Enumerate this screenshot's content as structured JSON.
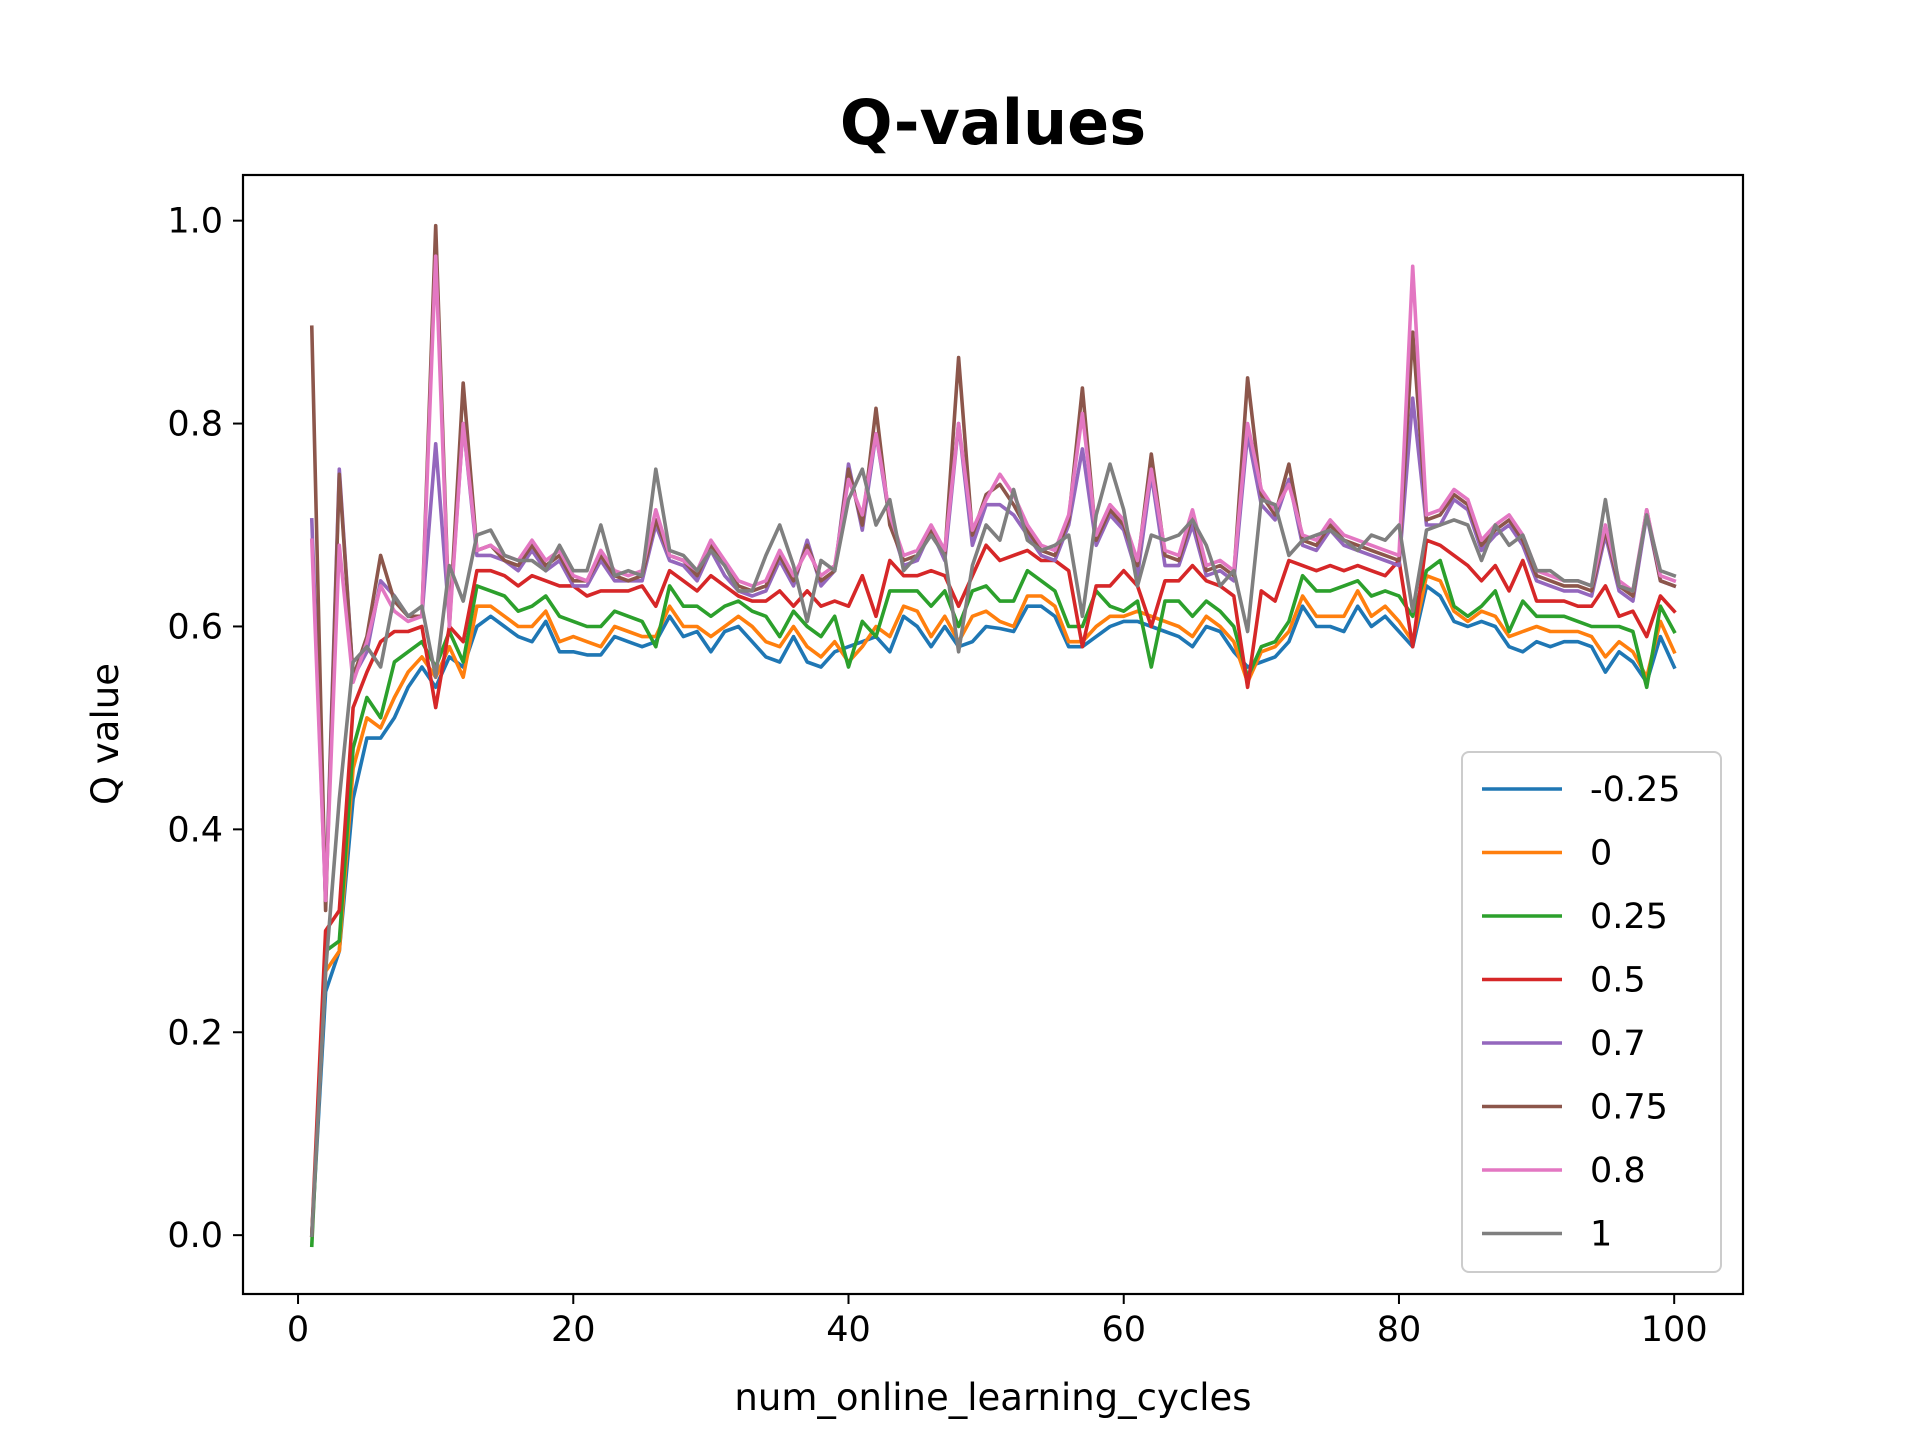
{
  "chart_data": {
    "type": "line",
    "title": "Q-values",
    "xlabel": "num_online_learning_cycles",
    "ylabel": "Q value",
    "xlim": [
      -4,
      105
    ],
    "ylim": [
      -0.058,
      1.045
    ],
    "x_ticks": [
      0,
      20,
      40,
      60,
      80,
      100
    ],
    "y_ticks": [
      0.0,
      0.2,
      0.4,
      0.6,
      0.8,
      1.0
    ],
    "x_tick_labels": [
      "0",
      "20",
      "40",
      "60",
      "80",
      "100"
    ],
    "y_tick_labels": [
      "0.0",
      "0.2",
      "0.4",
      "0.6",
      "0.8",
      "1.0"
    ],
    "grid": false,
    "legend_position": "lower-right",
    "x": [
      1,
      2,
      3,
      4,
      5,
      6,
      7,
      8,
      9,
      10,
      11,
      12,
      13,
      14,
      15,
      16,
      17,
      18,
      19,
      20,
      21,
      22,
      23,
      24,
      25,
      26,
      27,
      28,
      29,
      30,
      31,
      32,
      33,
      34,
      35,
      36,
      37,
      38,
      39,
      40,
      41,
      42,
      43,
      44,
      45,
      46,
      47,
      48,
      49,
      50,
      51,
      52,
      53,
      54,
      55,
      56,
      57,
      58,
      59,
      60,
      61,
      62,
      63,
      64,
      65,
      66,
      67,
      68,
      69,
      70,
      71,
      72,
      73,
      74,
      75,
      76,
      77,
      78,
      79,
      80,
      81,
      82,
      83,
      84,
      85,
      86,
      87,
      88,
      89,
      90,
      91,
      92,
      93,
      94,
      95,
      96,
      97,
      98,
      99,
      100
    ],
    "series": [
      {
        "name": "-0.25",
        "color": "#1f77b4",
        "values": [
          0.0,
          0.24,
          0.28,
          0.43,
          0.49,
          0.49,
          0.51,
          0.54,
          0.56,
          0.54,
          0.57,
          0.56,
          0.6,
          0.61,
          0.6,
          0.59,
          0.585,
          0.605,
          0.575,
          0.575,
          0.572,
          0.572,
          0.59,
          0.585,
          0.58,
          0.585,
          0.61,
          0.59,
          0.595,
          0.575,
          0.595,
          0.6,
          0.585,
          0.57,
          0.565,
          0.59,
          0.565,
          0.56,
          0.575,
          0.58,
          0.585,
          0.59,
          0.575,
          0.61,
          0.6,
          0.58,
          0.6,
          0.58,
          0.585,
          0.6,
          0.598,
          0.595,
          0.62,
          0.62,
          0.61,
          0.58,
          0.58,
          0.59,
          0.6,
          0.605,
          0.605,
          0.6,
          0.595,
          0.59,
          0.58,
          0.6,
          0.595,
          0.575,
          0.56,
          0.565,
          0.57,
          0.585,
          0.62,
          0.6,
          0.6,
          0.595,
          0.62,
          0.6,
          0.61,
          0.595,
          0.58,
          0.64,
          0.63,
          0.605,
          0.6,
          0.605,
          0.6,
          0.58,
          0.575,
          0.585,
          0.58,
          0.585,
          0.585,
          0.58,
          0.555,
          0.575,
          0.565,
          0.545,
          0.59,
          0.56
        ]
      },
      {
        "name": "0",
        "color": "#ff7f0e",
        "values": [
          0.0,
          0.26,
          0.28,
          0.46,
          0.51,
          0.5,
          0.53,
          0.555,
          0.57,
          0.55,
          0.58,
          0.55,
          0.62,
          0.62,
          0.61,
          0.6,
          0.6,
          0.615,
          0.585,
          0.59,
          0.585,
          0.58,
          0.6,
          0.595,
          0.59,
          0.59,
          0.62,
          0.6,
          0.6,
          0.59,
          0.6,
          0.61,
          0.6,
          0.585,
          0.58,
          0.6,
          0.58,
          0.57,
          0.585,
          0.565,
          0.58,
          0.6,
          0.59,
          0.62,
          0.615,
          0.59,
          0.61,
          0.585,
          0.61,
          0.615,
          0.605,
          0.6,
          0.63,
          0.63,
          0.62,
          0.585,
          0.585,
          0.6,
          0.61,
          0.61,
          0.615,
          0.61,
          0.605,
          0.6,
          0.59,
          0.61,
          0.6,
          0.585,
          0.545,
          0.575,
          0.58,
          0.595,
          0.63,
          0.61,
          0.61,
          0.61,
          0.635,
          0.61,
          0.62,
          0.605,
          0.585,
          0.65,
          0.645,
          0.615,
          0.605,
          0.615,
          0.61,
          0.59,
          0.595,
          0.6,
          0.595,
          0.595,
          0.595,
          0.59,
          0.57,
          0.585,
          0.575,
          0.55,
          0.605,
          0.575
        ]
      },
      {
        "name": "0.25",
        "color": "#2ca02c",
        "values": [
          -0.01,
          0.28,
          0.29,
          0.48,
          0.53,
          0.51,
          0.565,
          0.575,
          0.585,
          0.56,
          0.595,
          0.565,
          0.64,
          0.635,
          0.63,
          0.615,
          0.62,
          0.63,
          0.61,
          0.605,
          0.6,
          0.6,
          0.615,
          0.61,
          0.605,
          0.58,
          0.64,
          0.62,
          0.62,
          0.61,
          0.62,
          0.625,
          0.615,
          0.61,
          0.59,
          0.615,
          0.6,
          0.59,
          0.61,
          0.56,
          0.605,
          0.59,
          0.635,
          0.635,
          0.635,
          0.62,
          0.635,
          0.6,
          0.635,
          0.64,
          0.625,
          0.625,
          0.655,
          0.645,
          0.635,
          0.6,
          0.6,
          0.635,
          0.62,
          0.615,
          0.625,
          0.56,
          0.625,
          0.625,
          0.61,
          0.625,
          0.615,
          0.6,
          0.55,
          0.58,
          0.585,
          0.605,
          0.65,
          0.635,
          0.635,
          0.64,
          0.645,
          0.63,
          0.635,
          0.63,
          0.61,
          0.655,
          0.665,
          0.62,
          0.61,
          0.62,
          0.635,
          0.595,
          0.625,
          0.61,
          0.61,
          0.61,
          0.605,
          0.6,
          0.6,
          0.6,
          0.595,
          0.54,
          0.62,
          0.595
        ]
      },
      {
        "name": "0.5",
        "color": "#d62728",
        "values": [
          0.0,
          0.3,
          0.32,
          0.52,
          0.555,
          0.585,
          0.595,
          0.595,
          0.6,
          0.52,
          0.6,
          0.585,
          0.655,
          0.655,
          0.65,
          0.64,
          0.65,
          0.645,
          0.64,
          0.64,
          0.63,
          0.635,
          0.635,
          0.635,
          0.64,
          0.62,
          0.655,
          0.645,
          0.635,
          0.65,
          0.64,
          0.63,
          0.625,
          0.625,
          0.635,
          0.62,
          0.635,
          0.62,
          0.625,
          0.62,
          0.65,
          0.61,
          0.665,
          0.65,
          0.65,
          0.655,
          0.65,
          0.62,
          0.65,
          0.68,
          0.665,
          0.67,
          0.675,
          0.665,
          0.665,
          0.655,
          0.58,
          0.64,
          0.64,
          0.655,
          0.64,
          0.6,
          0.645,
          0.645,
          0.66,
          0.645,
          0.64,
          0.63,
          0.54,
          0.635,
          0.625,
          0.665,
          0.66,
          0.655,
          0.66,
          0.655,
          0.66,
          0.655,
          0.65,
          0.665,
          0.58,
          0.685,
          0.68,
          0.67,
          0.66,
          0.645,
          0.66,
          0.635,
          0.665,
          0.625,
          0.625,
          0.625,
          0.62,
          0.62,
          0.64,
          0.61,
          0.615,
          0.59,
          0.63,
          0.615
        ]
      },
      {
        "name": "0.7",
        "color": "#9467bd",
        "values": [
          0.705,
          0.33,
          0.755,
          0.55,
          0.575,
          0.645,
          0.63,
          0.61,
          0.61,
          0.78,
          0.605,
          0.8,
          0.67,
          0.67,
          0.665,
          0.655,
          0.675,
          0.655,
          0.665,
          0.64,
          0.64,
          0.665,
          0.645,
          0.645,
          0.645,
          0.7,
          0.665,
          0.66,
          0.645,
          0.675,
          0.65,
          0.635,
          0.63,
          0.635,
          0.665,
          0.64,
          0.685,
          0.64,
          0.655,
          0.76,
          0.695,
          0.79,
          0.705,
          0.66,
          0.665,
          0.695,
          0.665,
          0.8,
          0.68,
          0.72,
          0.72,
          0.71,
          0.69,
          0.67,
          0.665,
          0.7,
          0.775,
          0.68,
          0.71,
          0.695,
          0.65,
          0.75,
          0.66,
          0.66,
          0.7,
          0.65,
          0.655,
          0.645,
          0.79,
          0.72,
          0.705,
          0.745,
          0.68,
          0.675,
          0.695,
          0.68,
          0.675,
          0.67,
          0.665,
          0.66,
          0.825,
          0.7,
          0.7,
          0.725,
          0.715,
          0.675,
          0.69,
          0.7,
          0.68,
          0.645,
          0.64,
          0.635,
          0.635,
          0.63,
          0.69,
          0.635,
          0.625,
          0.71,
          0.645,
          0.64
        ]
      },
      {
        "name": "0.75",
        "color": "#8c564b",
        "values": [
          0.895,
          0.32,
          0.75,
          0.55,
          0.59,
          0.67,
          0.625,
          0.61,
          0.61,
          0.995,
          0.6,
          0.84,
          0.675,
          0.68,
          0.665,
          0.66,
          0.68,
          0.66,
          0.67,
          0.645,
          0.645,
          0.67,
          0.65,
          0.645,
          0.65,
          0.705,
          0.67,
          0.665,
          0.65,
          0.68,
          0.66,
          0.64,
          0.635,
          0.64,
          0.67,
          0.645,
          0.68,
          0.645,
          0.655,
          0.755,
          0.7,
          0.815,
          0.7,
          0.665,
          0.67,
          0.695,
          0.67,
          0.865,
          0.69,
          0.73,
          0.74,
          0.72,
          0.695,
          0.675,
          0.67,
          0.705,
          0.835,
          0.685,
          0.715,
          0.7,
          0.66,
          0.77,
          0.67,
          0.665,
          0.71,
          0.655,
          0.66,
          0.65,
          0.845,
          0.73,
          0.71,
          0.76,
          0.685,
          0.68,
          0.7,
          0.685,
          0.68,
          0.675,
          0.67,
          0.665,
          0.89,
          0.705,
          0.71,
          0.73,
          0.72,
          0.68,
          0.695,
          0.705,
          0.685,
          0.65,
          0.645,
          0.64,
          0.64,
          0.635,
          0.695,
          0.64,
          0.63,
          0.715,
          0.645,
          0.64
        ]
      },
      {
        "name": "0.8",
        "color": "#e377c2",
        "values": [
          0.685,
          0.33,
          0.68,
          0.545,
          0.585,
          0.64,
          0.615,
          0.605,
          0.61,
          0.965,
          0.6,
          0.8,
          0.675,
          0.68,
          0.67,
          0.665,
          0.685,
          0.665,
          0.675,
          0.65,
          0.645,
          0.675,
          0.655,
          0.65,
          0.655,
          0.715,
          0.67,
          0.665,
          0.655,
          0.685,
          0.665,
          0.645,
          0.64,
          0.645,
          0.675,
          0.65,
          0.675,
          0.65,
          0.66,
          0.745,
          0.71,
          0.79,
          0.71,
          0.67,
          0.675,
          0.7,
          0.675,
          0.8,
          0.695,
          0.725,
          0.75,
          0.73,
          0.7,
          0.68,
          0.675,
          0.71,
          0.81,
          0.69,
          0.72,
          0.705,
          0.665,
          0.755,
          0.675,
          0.67,
          0.715,
          0.66,
          0.665,
          0.655,
          0.8,
          0.735,
          0.715,
          0.74,
          0.69,
          0.685,
          0.705,
          0.69,
          0.685,
          0.68,
          0.675,
          0.67,
          0.955,
          0.71,
          0.715,
          0.735,
          0.725,
          0.685,
          0.7,
          0.71,
          0.69,
          0.655,
          0.65,
          0.645,
          0.645,
          0.64,
          0.7,
          0.645,
          0.635,
          0.715,
          0.65,
          0.645
        ]
      },
      {
        "name": "1",
        "color": "#7f7f7f",
        "values": [
          0.0,
          0.26,
          0.43,
          0.565,
          0.58,
          0.56,
          0.63,
          0.61,
          0.62,
          0.55,
          0.66,
          0.625,
          0.69,
          0.695,
          0.67,
          0.665,
          0.665,
          0.655,
          0.68,
          0.655,
          0.655,
          0.7,
          0.65,
          0.655,
          0.65,
          0.755,
          0.675,
          0.67,
          0.655,
          0.675,
          0.66,
          0.635,
          0.635,
          0.67,
          0.7,
          0.66,
          0.605,
          0.665,
          0.655,
          0.725,
          0.755,
          0.7,
          0.725,
          0.655,
          0.67,
          0.69,
          0.67,
          0.575,
          0.66,
          0.7,
          0.685,
          0.735,
          0.685,
          0.675,
          0.68,
          0.69,
          0.61,
          0.71,
          0.76,
          0.715,
          0.64,
          0.69,
          0.685,
          0.69,
          0.705,
          0.68,
          0.64,
          0.655,
          0.595,
          0.725,
          0.72,
          0.67,
          0.685,
          0.69,
          0.695,
          0.685,
          0.675,
          0.69,
          0.685,
          0.7,
          0.615,
          0.695,
          0.7,
          0.705,
          0.7,
          0.665,
          0.7,
          0.68,
          0.69,
          0.655,
          0.655,
          0.645,
          0.645,
          0.64,
          0.725,
          0.64,
          0.635,
          0.71,
          0.655,
          0.65
        ]
      }
    ]
  }
}
